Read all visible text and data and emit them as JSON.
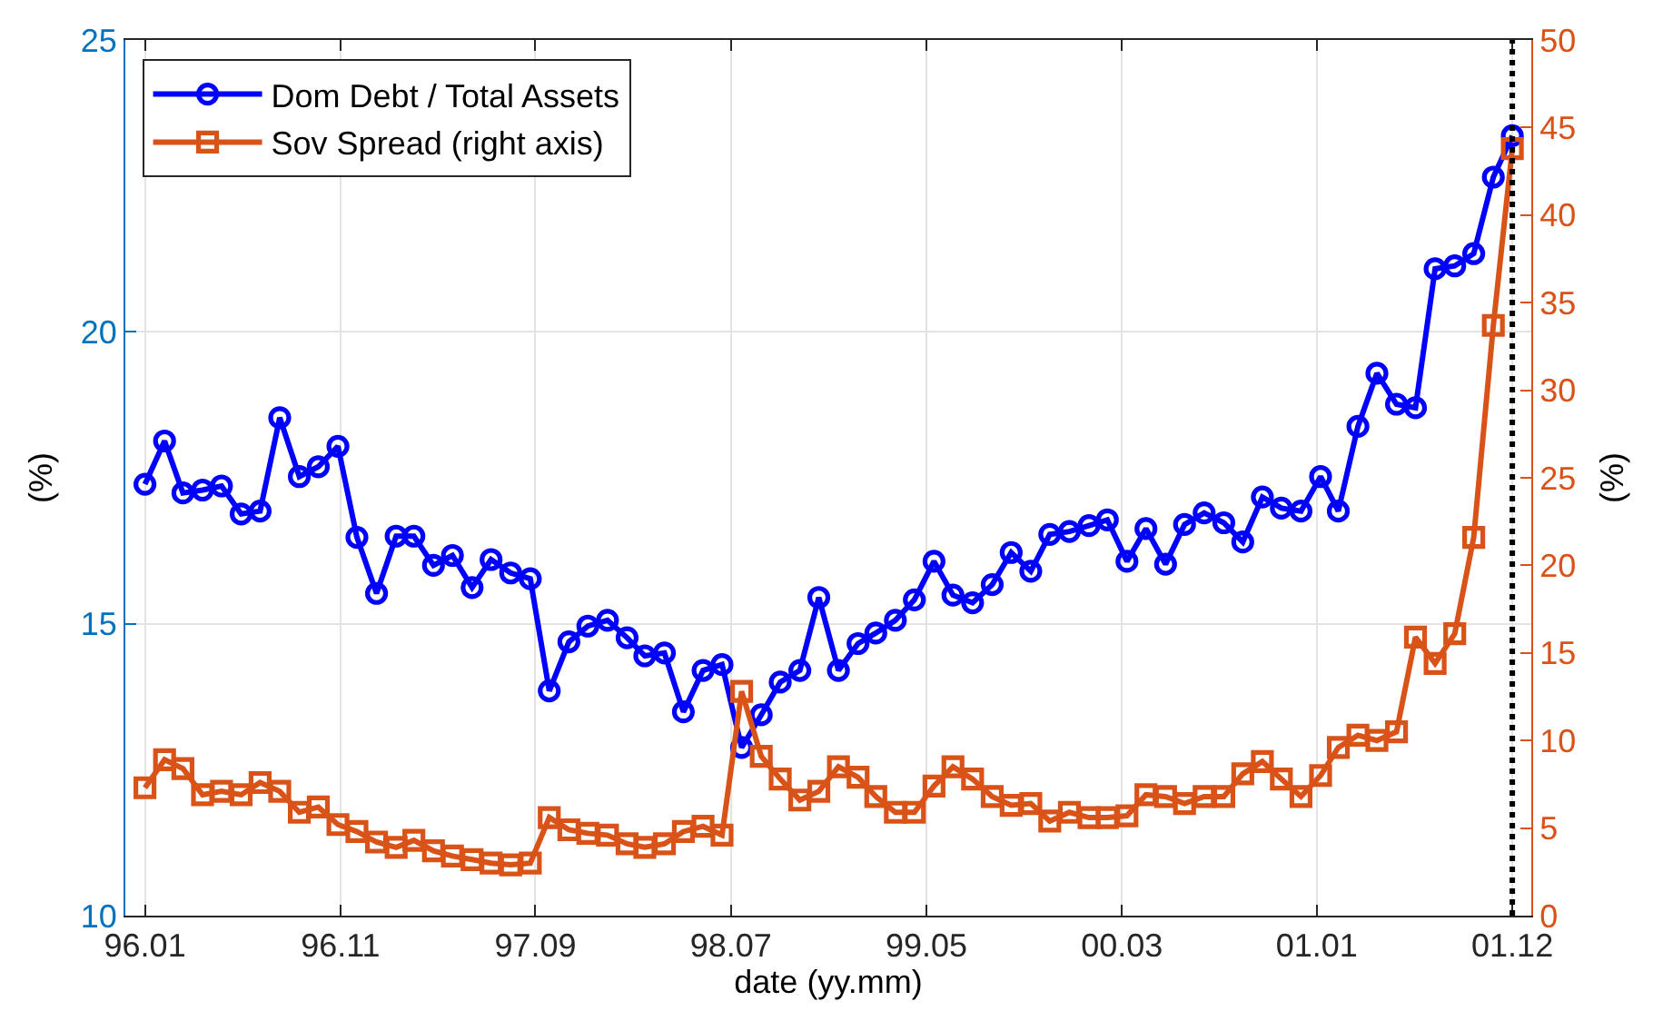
{
  "chart_data": {
    "type": "line",
    "xlabel": "date (yy.mm)",
    "ylabel": "(%)",
    "y2label": "(%)",
    "x": [
      "1996-01",
      "1996-02",
      "1996-03",
      "1996-04",
      "1996-05",
      "1996-06",
      "1996-07",
      "1996-08",
      "1996-09",
      "1996-10",
      "1996-11",
      "1996-12",
      "1997-01",
      "1997-02",
      "1997-03",
      "1997-04",
      "1997-05",
      "1997-06",
      "1997-07",
      "1997-08",
      "1997-09",
      "1997-10",
      "1997-11",
      "1997-12",
      "1998-01",
      "1998-02",
      "1998-03",
      "1998-04",
      "1998-05",
      "1998-06",
      "1998-07",
      "1998-08",
      "1998-09",
      "1998-10",
      "1998-11",
      "1998-12",
      "1999-01",
      "1999-02",
      "1999-03",
      "1999-04",
      "1999-05",
      "1999-06",
      "1999-07",
      "1999-08",
      "1999-09",
      "1999-10",
      "1999-11",
      "1999-12",
      "2000-01",
      "2000-02",
      "2000-03",
      "2000-04",
      "2000-05",
      "2000-06",
      "2000-07",
      "2000-08",
      "2000-09",
      "2000-10",
      "2000-11",
      "2000-12",
      "2001-01",
      "2001-02",
      "2001-03",
      "2001-04",
      "2001-05",
      "2001-06",
      "2001-07",
      "2001-08",
      "2001-09",
      "2001-10",
      "2001-11",
      "2001-12"
    ],
    "xlim": [
      "1995-12-01",
      "2001-12-31"
    ],
    "xticks": [
      {
        "value": "1996-01-01",
        "label": "96.01"
      },
      {
        "value": "1996-11-05",
        "label": "96.11"
      },
      {
        "value": "1997-09-09",
        "label": "97.09"
      },
      {
        "value": "1998-07-15",
        "label": "98.07"
      },
      {
        "value": "1999-05-20",
        "label": "99.05"
      },
      {
        "value": "2000-03-24",
        "label": "00.03"
      },
      {
        "value": "2001-01-26",
        "label": "01.01"
      },
      {
        "value": "2001-12-01",
        "label": "01.12"
      }
    ],
    "ylim": [
      10,
      25
    ],
    "yticks": [
      10,
      15,
      20,
      25
    ],
    "y2lim": [
      0,
      50
    ],
    "y2ticks": [
      0,
      5,
      10,
      15,
      20,
      25,
      30,
      35,
      40,
      45,
      50
    ],
    "grid": true,
    "legend": "top left",
    "line_style": "solid",
    "ref_lines": [
      {
        "axis": "x",
        "value": "2001-12-01",
        "color": "#000000",
        "line_style": "dotted"
      }
    ],
    "series": [
      {
        "name": "Dom Debt / Total Assets",
        "color": "#0000ff",
        "marker": "circle",
        "values": [
          17.39,
          18.13,
          17.24,
          17.29,
          17.36,
          16.88,
          16.93,
          18.53,
          17.52,
          17.69,
          18.04,
          16.48,
          15.52,
          16.5,
          16.5,
          16.0,
          16.17,
          15.62,
          16.1,
          15.87,
          15.77,
          13.85,
          14.69,
          14.96,
          15.06,
          14.76,
          14.45,
          14.5,
          13.49,
          14.2,
          14.3,
          12.88,
          13.44,
          14.0,
          14.2,
          15.45,
          14.2,
          14.66,
          14.84,
          15.06,
          15.41,
          16.07,
          15.49,
          15.36,
          15.67,
          16.22,
          15.9,
          16.53,
          16.58,
          16.68,
          16.78,
          16.07,
          16.63,
          16.02,
          16.7,
          16.9,
          16.73,
          16.4,
          17.17,
          16.98,
          16.93,
          17.52,
          16.93,
          18.38,
          19.29,
          18.76,
          18.7,
          21.08,
          21.13,
          21.34,
          22.65,
          23.36
        ]
      },
      {
        "name": "Sov Spread (right axis)",
        "color": "#d95319",
        "marker": "square",
        "axis": "y2",
        "values": [
          7.3,
          8.9,
          8.4,
          6.9,
          7.1,
          6.9,
          7.6,
          7.1,
          5.9,
          6.2,
          5.2,
          4.8,
          4.2,
          3.9,
          4.3,
          3.7,
          3.4,
          3.2,
          3.0,
          2.9,
          3.0,
          5.6,
          4.9,
          4.7,
          4.6,
          4.1,
          3.9,
          4.1,
          4.8,
          5.1,
          4.6,
          12.8,
          9.1,
          7.8,
          6.6,
          7.1,
          8.5,
          7.9,
          6.8,
          5.9,
          5.9,
          7.4,
          8.5,
          7.8,
          6.8,
          6.3,
          6.4,
          5.4,
          5.9,
          5.6,
          5.6,
          5.7,
          6.9,
          6.8,
          6.4,
          6.8,
          6.8,
          8.1,
          8.8,
          7.8,
          6.8,
          8.0,
          9.6,
          10.3,
          10.0,
          10.5,
          15.9,
          14.4,
          16.1,
          21.6,
          33.7,
          43.8
        ]
      }
    ]
  }
}
